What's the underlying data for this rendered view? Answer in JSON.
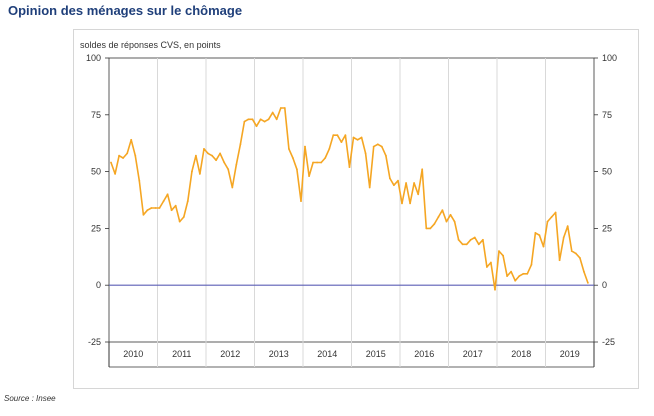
{
  "title": "Opinion des ménages sur le chômage",
  "subtitle": "soldes de réponses CVS, en points",
  "source": "Source : Insee",
  "colors": {
    "series": "#f5a623",
    "zero_line": "#5b5fb5",
    "grid": "#d9d9d9",
    "title": "#1f3f7a"
  },
  "chart_data": {
    "type": "line",
    "title": "Opinion des ménages sur le chômage",
    "ylabel": "soldes de réponses CVS, en points",
    "ylim": [
      -25,
      100
    ],
    "yticks": [
      -25,
      0,
      25,
      50,
      75,
      100
    ],
    "y_axis_both_sides": true,
    "grid": "vertical year separators",
    "x_start": "2010-01",
    "x_end": "2019-12",
    "x_categories": [
      "2010",
      "2011",
      "2012",
      "2013",
      "2014",
      "2015",
      "2016",
      "2017",
      "2018",
      "2019"
    ],
    "reference_line": 0,
    "series": [
      {
        "x": [
          "2010-01",
          "2010-02",
          "2010-03",
          "2010-04",
          "2010-05",
          "2010-06",
          "2010-07",
          "2010-08",
          "2010-09",
          "2010-10",
          "2010-11",
          "2010-12",
          "2011-01",
          "2011-02",
          "2011-03",
          "2011-04",
          "2011-05",
          "2011-06",
          "2011-07",
          "2011-08",
          "2011-09",
          "2011-10",
          "2011-11",
          "2011-12",
          "2012-01",
          "2012-02",
          "2012-03",
          "2012-04",
          "2012-05",
          "2012-06",
          "2012-07",
          "2012-08",
          "2012-09",
          "2012-10",
          "2012-11",
          "2012-12",
          "2013-01",
          "2013-02",
          "2013-03",
          "2013-04",
          "2013-05",
          "2013-06",
          "2013-07",
          "2013-08",
          "2013-09",
          "2013-10",
          "2013-11",
          "2013-12",
          "2014-01",
          "2014-02",
          "2014-03",
          "2014-04",
          "2014-05",
          "2014-06",
          "2014-07",
          "2014-08",
          "2014-09",
          "2014-10",
          "2014-11",
          "2014-12",
          "2015-01",
          "2015-02",
          "2015-03",
          "2015-04",
          "2015-05",
          "2015-06",
          "2015-07",
          "2015-08",
          "2015-09",
          "2015-10",
          "2015-11",
          "2015-12",
          "2016-01",
          "2016-02",
          "2016-03",
          "2016-04",
          "2016-05",
          "2016-06",
          "2016-07",
          "2016-08",
          "2016-09",
          "2016-10",
          "2016-11",
          "2016-12",
          "2017-01",
          "2017-02",
          "2017-03",
          "2017-04",
          "2017-05",
          "2017-06",
          "2017-07",
          "2017-08",
          "2017-09",
          "2017-10",
          "2017-11",
          "2017-12",
          "2018-01",
          "2018-02",
          "2018-03",
          "2018-04",
          "2018-05",
          "2018-06",
          "2018-07",
          "2018-08",
          "2018-09",
          "2018-10",
          "2018-11",
          "2018-12",
          "2019-01",
          "2019-02",
          "2019-03",
          "2019-04",
          "2019-05",
          "2019-06",
          "2019-07",
          "2019-08",
          "2019-09",
          "2019-10",
          "2019-11"
        ],
        "values": [
          54,
          49,
          57,
          56,
          58,
          64,
          57,
          46,
          31,
          33,
          34,
          34,
          34,
          37,
          40,
          33,
          35,
          28,
          30,
          37,
          50,
          57,
          49,
          60,
          58,
          57,
          55,
          58,
          54,
          51,
          43,
          53,
          62,
          72,
          73,
          73,
          70,
          73,
          72,
          73,
          76,
          73,
          78,
          78,
          60,
          56,
          51,
          37,
          61,
          48,
          54,
          54,
          54,
          56,
          60,
          66,
          66,
          63,
          66,
          52,
          65,
          64,
          65,
          58,
          43,
          61,
          62,
          61,
          57,
          47,
          44,
          46,
          36,
          45,
          36,
          45,
          40,
          51,
          25,
          25,
          27,
          30,
          33,
          28,
          31,
          28,
          20,
          18,
          18,
          20,
          21,
          18,
          20,
          8,
          10,
          -2,
          15,
          13,
          4,
          6,
          2,
          4,
          5,
          5,
          9,
          23,
          22,
          17,
          28,
          30,
          32,
          11,
          21,
          26,
          15,
          14,
          12,
          6,
          1
        ]
      }
    ]
  }
}
